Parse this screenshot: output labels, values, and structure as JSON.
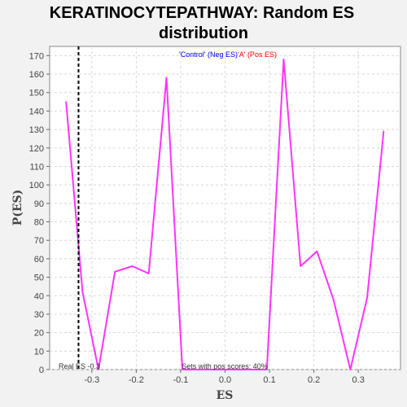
{
  "chart_data": {
    "type": "line",
    "title_line1": "KERATINOCYTEPATHWAY: Random ES",
    "title_line2": "distribution",
    "xlabel": "ES",
    "ylabel": "P(ES)",
    "xlim": [
      -0.395,
      0.395
    ],
    "ylim": [
      0,
      175
    ],
    "grid": true,
    "xticks": [
      -0.3,
      -0.2,
      -0.1,
      0.0,
      0.1,
      0.2,
      0.3
    ],
    "xtick_labels": [
      "-0.3",
      "-0.2",
      "-0.1",
      "0.0",
      "0.1",
      "0.2",
      "0.3"
    ],
    "yticks": [
      0,
      10,
      20,
      30,
      40,
      50,
      60,
      70,
      80,
      90,
      100,
      110,
      120,
      130,
      140,
      150,
      160,
      170
    ],
    "ytick_labels": [
      "0",
      "10",
      "20",
      "30",
      "40",
      "50",
      "60",
      "70",
      "80",
      "90",
      "100",
      "110",
      "120",
      "130",
      "140",
      "150",
      "160",
      "170"
    ],
    "series": [
      {
        "color": "#ff33ff",
        "x": [
          -0.358,
          -0.321,
          -0.285,
          -0.248,
          -0.209,
          -0.172,
          -0.132,
          -0.096,
          -0.058,
          -0.02,
          0.018,
          0.056,
          0.094,
          0.132,
          0.17,
          0.207,
          0.244,
          0.282,
          0.32,
          0.357
        ],
        "y": [
          145,
          42,
          0,
          53,
          56,
          52,
          158,
          0,
          0,
          0,
          0,
          0,
          0,
          168,
          56,
          64,
          38,
          0,
          39,
          129
        ]
      }
    ],
    "real_es": -0.33,
    "legend": {
      "neg_label": "'Control' (Neg ES)",
      "pos_label": "'A' (Pos ES)",
      "placement": "top-center"
    },
    "annotations": {
      "real_es": "Real ES -0.3",
      "pos_scores": "Sets with pos scores: 40%"
    }
  }
}
